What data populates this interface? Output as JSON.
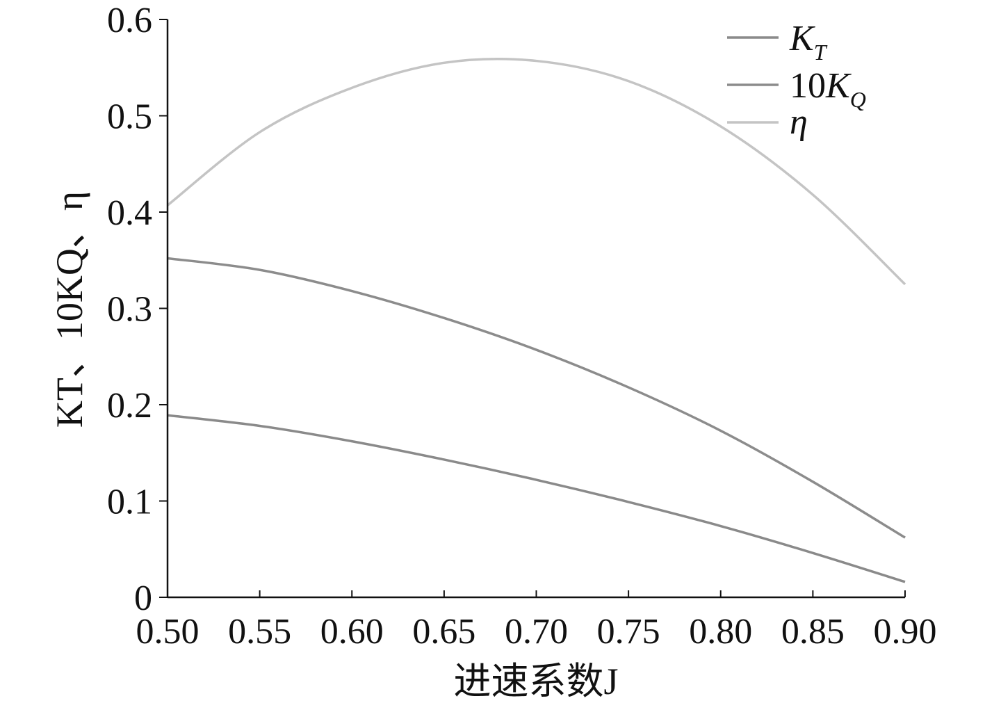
{
  "chart_data": {
    "type": "line",
    "xlabel": "进速系数J",
    "ylabel": "KT、10KQ、η",
    "xlim": [
      0.5,
      0.9
    ],
    "ylim": [
      0,
      0.6
    ],
    "x_ticks": [
      "0.50",
      "0.55",
      "0.60",
      "0.65",
      "0.70",
      "0.75",
      "0.80",
      "0.85",
      "0.90"
    ],
    "y_ticks": [
      "0",
      "0.1",
      "0.2",
      "0.3",
      "0.4",
      "0.5",
      "0.6"
    ],
    "grid": false,
    "legend_position": "top-right",
    "x": [
      0.5,
      0.55,
      0.6,
      0.65,
      0.7,
      0.75,
      0.8,
      0.85,
      0.9
    ],
    "series": [
      {
        "name": "KT",
        "color": "#8a8a8a",
        "values": [
          0.189,
          0.178,
          0.162,
          0.143,
          0.122,
          0.099,
          0.074,
          0.046,
          0.016
        ]
      },
      {
        "name": "10KQ",
        "color": "#8c8c8c",
        "values": [
          0.352,
          0.34,
          0.318,
          0.29,
          0.257,
          0.218,
          0.173,
          0.12,
          0.062
        ]
      },
      {
        "name": "η",
        "color": "#c4c4c4",
        "values": [
          0.407,
          0.483,
          0.529,
          0.555,
          0.557,
          0.536,
          0.489,
          0.418,
          0.325
        ]
      }
    ]
  }
}
